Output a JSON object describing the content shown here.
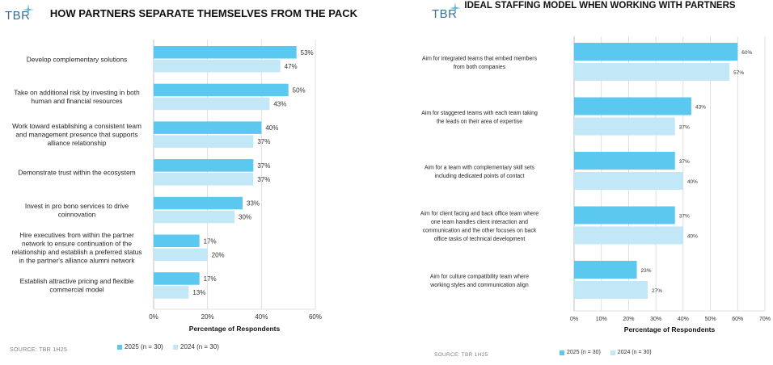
{
  "brand": "TBR",
  "colors": {
    "series_2025": "#5bc8ef",
    "series_2024": "#c2e8f8",
    "grid": "#d9d9d9",
    "axis": "#bfbfbf"
  },
  "panels": [
    {
      "title": "HOW PARTNERS SEPARATE THEMSELVES FROM THE PACK",
      "source": "SOURCE: TBR 1H25",
      "legend": [
        "2025 (n = 30)",
        "2024 (n = 30)"
      ]
    },
    {
      "title": "IDEAL STAFFING MODEL WHEN WORKING WITH PARTNERS",
      "source": "SOURCE: TBR 1H25",
      "legend": [
        "2025 (n = 30)",
        "2024 (n = 30)"
      ]
    }
  ],
  "chart_data": [
    {
      "type": "bar",
      "orientation": "horizontal",
      "title": "HOW PARTNERS SEPARATE THEMSELVES FROM THE PACK",
      "xlabel": "Percentage of Respondents",
      "xlim": [
        0,
        60
      ],
      "xticks": [
        "0%",
        "20%",
        "40%",
        "60%"
      ],
      "grid": true,
      "legend": "bottom",
      "categories": [
        "Develop complementary solutions",
        "Take on additional risk by investing in both human and financial resources",
        "Work toward establishing a consistent team and management presence that supports alliance relationship",
        "Demonstrate trust within the ecosystem",
        "Invest in pro bono services to drive coinnovation",
        "Hire executives from within the partner network to ensure continuation of the relationship and establish a preferred status in the partner's alliance alumni network",
        "Establish attractive pricing and flexible commercial model"
      ],
      "category_lines": [
        [
          "Develop complementary solutions"
        ],
        [
          "Take on additional risk by investing in both",
          "human and financial resources"
        ],
        [
          "Work toward establishing a consistent team",
          "and management presence that supports",
          "alliance relationship"
        ],
        [
          "Demonstrate trust within the ecosystem"
        ],
        [
          "Invest in pro bono services to drive",
          "coinnovation"
        ],
        [
          "Hire executives from within the partner",
          "network to ensure continuation of the",
          "relationship and establish a preferred status",
          "in the partner's alliance alumni network"
        ],
        [
          "Establish attractive pricing and flexible",
          "commercial model"
        ]
      ],
      "series": [
        {
          "name": "2025 (n = 30)",
          "values": [
            53,
            50,
            40,
            37,
            33,
            17,
            17
          ],
          "labels": [
            "53%",
            "50%",
            "40%",
            "37%",
            "33%",
            "17%",
            "17%"
          ]
        },
        {
          "name": "2024 (n = 30)",
          "values": [
            47,
            43,
            37,
            37,
            30,
            20,
            13
          ],
          "labels": [
            "47%",
            "43%",
            "37%",
            "37%",
            "30%",
            "20%",
            "13%"
          ]
        }
      ]
    },
    {
      "type": "bar",
      "orientation": "horizontal",
      "title": "IDEAL STAFFING MODEL WHEN WORKING WITH PARTNERS",
      "xlabel": "Percentage of Respondents",
      "xlim": [
        0,
        70
      ],
      "xticks": [
        "0%",
        "10%",
        "20%",
        "30%",
        "40%",
        "50%",
        "60%",
        "70%"
      ],
      "grid": true,
      "legend": "bottom",
      "categories": [
        "Aim for integrated teams that embed members from both companies",
        "Aim for staggered teams with each team taking the leads on their area of expertise",
        "Aim for a team with complementary skill sets including dedicated points of contact",
        "Aim for client facing and back office team where one team handles client interaction and communication and the other focuses on back office tasks of technical development",
        "Aim for culture compatibility team where working styles and communication align"
      ],
      "category_lines": [
        [
          "Aim for integrated teams that embed members",
          "from both companies"
        ],
        [
          "Aim for staggered teams with each team taking",
          "the leads on their area of expertise"
        ],
        [
          "Aim for a team with complementary skill sets",
          "including dedicated points of contact"
        ],
        [
          "Aim for client facing and back office team where",
          "one team handles client interaction and",
          "communication and the other focuses on back",
          "office tasks of technical development"
        ],
        [
          "Aim for culture compatibility team where",
          "working styles and communication align"
        ]
      ],
      "series": [
        {
          "name": "2025 (n = 30)",
          "values": [
            60,
            43,
            37,
            37,
            23
          ],
          "labels": [
            "60%",
            "43%",
            "37%",
            "37%",
            "23%"
          ]
        },
        {
          "name": "2024 (n = 30)",
          "values": [
            57,
            37,
            40,
            40,
            27
          ],
          "labels": [
            "57%",
            "37%",
            "40%",
            "40%",
            "27%"
          ]
        }
      ]
    }
  ]
}
